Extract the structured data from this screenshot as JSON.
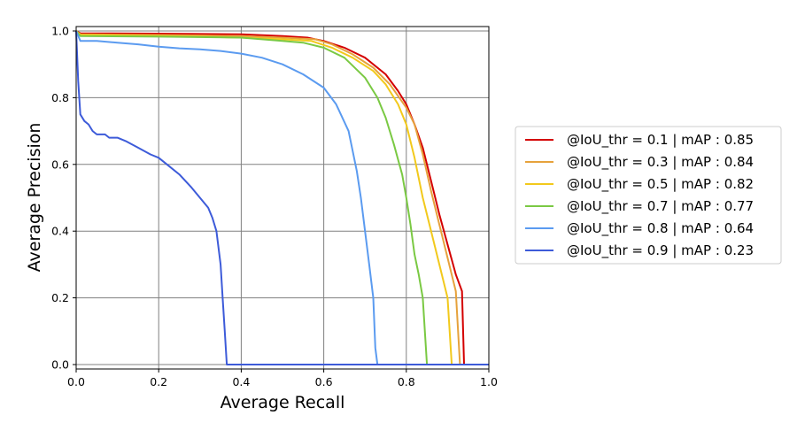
{
  "chart_data": {
    "type": "line",
    "title": "",
    "xlabel": "Average Recall",
    "ylabel": "Average Precision",
    "xlim": [
      0.0,
      1.0
    ],
    "ylim": [
      0.0,
      1.0
    ],
    "xticks": [
      "0.0",
      "0.2",
      "0.4",
      "0.6",
      "0.8",
      "1.0"
    ],
    "yticks": [
      "0.0",
      "0.2",
      "0.4",
      "0.6",
      "0.8",
      "1.0"
    ],
    "grid": true,
    "legend_position": "right",
    "series": [
      {
        "name": "@IoU_thr = 0.1 | mAP : 0.85",
        "color": "#d40000",
        "x": [
          0.0,
          0.01,
          0.2,
          0.4,
          0.5,
          0.56,
          0.6,
          0.65,
          0.7,
          0.75,
          0.78,
          0.8,
          0.82,
          0.84,
          0.86,
          0.88,
          0.9,
          0.92,
          0.935,
          0.94,
          0.95,
          1.0
        ],
        "y": [
          1.0,
          0.993,
          0.992,
          0.99,
          0.985,
          0.98,
          0.97,
          0.95,
          0.92,
          0.87,
          0.82,
          0.78,
          0.72,
          0.65,
          0.55,
          0.45,
          0.36,
          0.27,
          0.22,
          0.0,
          0.0,
          0.0
        ]
      },
      {
        "name": "@IoU_thr = 0.3 | mAP : 0.84",
        "color": "#e6a23c",
        "x": [
          0.0,
          0.01,
          0.2,
          0.4,
          0.5,
          0.58,
          0.62,
          0.67,
          0.72,
          0.76,
          0.8,
          0.82,
          0.84,
          0.86,
          0.88,
          0.9,
          0.92,
          0.93,
          0.94,
          1.0
        ],
        "y": [
          1.0,
          0.99,
          0.988,
          0.985,
          0.98,
          0.975,
          0.96,
          0.93,
          0.89,
          0.84,
          0.77,
          0.72,
          0.63,
          0.52,
          0.42,
          0.32,
          0.22,
          0.0,
          0.0,
          0.0
        ]
      },
      {
        "name": "@IoU_thr = 0.5 | mAP : 0.82",
        "color": "#f2c91c",
        "x": [
          0.0,
          0.01,
          0.2,
          0.4,
          0.5,
          0.57,
          0.62,
          0.67,
          0.72,
          0.75,
          0.78,
          0.8,
          0.82,
          0.84,
          0.86,
          0.88,
          0.9,
          0.91,
          0.92,
          1.0
        ],
        "y": [
          1.0,
          0.988,
          0.985,
          0.98,
          0.975,
          0.97,
          0.95,
          0.92,
          0.88,
          0.84,
          0.78,
          0.72,
          0.62,
          0.5,
          0.4,
          0.3,
          0.2,
          0.0,
          0.0,
          0.0
        ]
      },
      {
        "name": "@IoU_thr = 0.7 | mAP : 0.77",
        "color": "#7ac943",
        "x": [
          0.0,
          0.01,
          0.2,
          0.4,
          0.45,
          0.5,
          0.55,
          0.6,
          0.65,
          0.7,
          0.73,
          0.75,
          0.77,
          0.79,
          0.8,
          0.81,
          0.82,
          0.83,
          0.84,
          0.85,
          0.86,
          1.0
        ],
        "y": [
          1.0,
          0.985,
          0.983,
          0.98,
          0.975,
          0.97,
          0.965,
          0.95,
          0.92,
          0.86,
          0.8,
          0.74,
          0.66,
          0.57,
          0.5,
          0.42,
          0.33,
          0.27,
          0.2,
          0.0,
          0.0,
          0.0
        ]
      },
      {
        "name": "@IoU_thr = 0.8 | mAP : 0.64",
        "color": "#5b9bf0",
        "x": [
          0.0,
          0.01,
          0.05,
          0.1,
          0.15,
          0.2,
          0.25,
          0.3,
          0.35,
          0.4,
          0.45,
          0.5,
          0.55,
          0.6,
          0.63,
          0.66,
          0.68,
          0.69,
          0.7,
          0.71,
          0.72,
          0.725,
          0.73,
          0.74,
          1.0
        ],
        "y": [
          1.0,
          0.97,
          0.97,
          0.965,
          0.96,
          0.953,
          0.948,
          0.945,
          0.94,
          0.932,
          0.92,
          0.9,
          0.87,
          0.83,
          0.78,
          0.7,
          0.58,
          0.5,
          0.4,
          0.3,
          0.2,
          0.05,
          0.0,
          0.0,
          0.0
        ]
      },
      {
        "name": "@IoU_thr = 0.9 | mAP : 0.23",
        "color": "#3d5bd9",
        "x": [
          0.0,
          0.005,
          0.01,
          0.02,
          0.03,
          0.04,
          0.05,
          0.07,
          0.08,
          0.1,
          0.12,
          0.15,
          0.18,
          0.2,
          0.22,
          0.25,
          0.28,
          0.3,
          0.32,
          0.33,
          0.34,
          0.35,
          0.355,
          0.36,
          0.365,
          0.37,
          0.4,
          1.0
        ],
        "y": [
          1.0,
          0.85,
          0.75,
          0.73,
          0.72,
          0.7,
          0.69,
          0.69,
          0.68,
          0.68,
          0.67,
          0.65,
          0.63,
          0.62,
          0.6,
          0.57,
          0.53,
          0.5,
          0.47,
          0.44,
          0.4,
          0.3,
          0.2,
          0.1,
          0.0,
          0.0,
          0.0,
          0.0
        ]
      }
    ]
  }
}
